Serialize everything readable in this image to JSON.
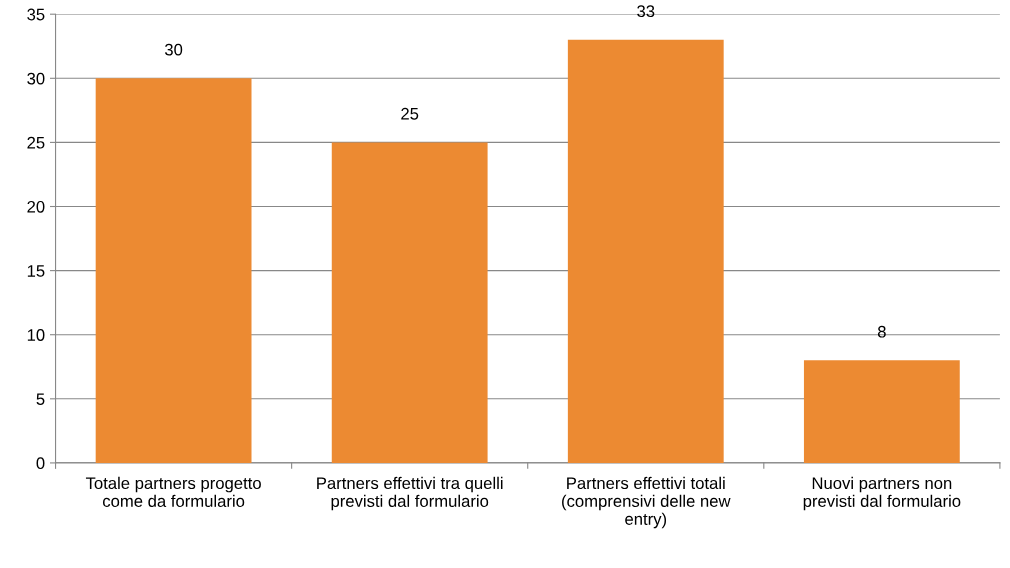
{
  "chart_data": {
    "type": "bar",
    "categories": [
      "Totale partners progetto\ncome da formulario",
      "Partners effettivi tra quelli\nprevisti dal formulario",
      "Partners effettivi totali\n(comprensivi delle new\nentry)",
      "Nuovi partners non\nprevisti dal formulario"
    ],
    "values": [
      30,
      25,
      33,
      8
    ],
    "color": "#ec8a32",
    "ylim": [
      0,
      35
    ],
    "yticks": [
      0,
      5,
      10,
      15,
      20,
      25,
      30,
      35
    ],
    "grid": "y",
    "data_labels": true
  }
}
